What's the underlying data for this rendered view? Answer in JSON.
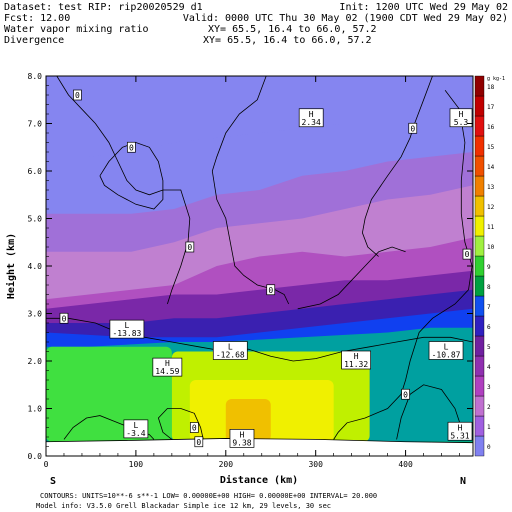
{
  "header": {
    "dataset_line": "Dataset: test   RIP: rip20020529 d1",
    "init_line": "Init: 1200 UTC Wed 29 May 02",
    "fcst_line": "Fcst:     12.00",
    "valid_line": "Valid: 0000 UTC Thu 30 May 02 (1900 CDT Wed 29 May 02)",
    "field1": "Water vapor mixing ratio",
    "xy1": "XY=  65.5, 16.4 to  66.0, 57.2",
    "field2": "Divergence",
    "xy2": "XY=  65.5, 16.4 to  66.0, 57.2"
  },
  "footer": {
    "line1": "CONTOURS:  UNITS=10**-6 s**-1   LOW= 0.00000E+00   HIGH= 0.00000E+00   INTERVAL=     20.000",
    "line2": "Model info: V3.5.0  Grell     Blackadar  Simple ice    12 km,  29 levels,    30 sec"
  },
  "chart_data": {
    "type": "heatmap",
    "title": "Water vapor mixing ratio",
    "xlabel": "Distance (km)",
    "ylabel": "Height (km)",
    "xlim": [
      0,
      475
    ],
    "ylim": [
      0,
      8
    ],
    "x_ticks": [
      0,
      100,
      200,
      300,
      400
    ],
    "y_ticks": [
      "0.0",
      "1.0",
      "2.0",
      "3.0",
      "4.0",
      "5.0",
      "6.0",
      "7.0",
      "8.0"
    ],
    "end_labels": {
      "left": "S",
      "right": "N"
    },
    "colorbar": {
      "unit": "g kg-1",
      "labels": [
        "0",
        "1",
        "2",
        "3",
        "4",
        "5",
        "6",
        "7",
        "8",
        "9",
        "10",
        "11",
        "12",
        "13",
        "14",
        "15",
        "16",
        "17",
        "18"
      ],
      "colors": [
        "#8080f0",
        "#a060e0",
        "#c070d0",
        "#b040c0",
        "#9030b0",
        "#7020a0",
        "#3020c0",
        "#1050f0",
        "#00a040",
        "#30d030",
        "#a0f040",
        "#f0f000",
        "#f0c000",
        "#f08000",
        "#f05000",
        "#f03000",
        "#e01010",
        "#c00000",
        "#900000"
      ]
    },
    "layers": [
      {
        "name": "lavender top",
        "value": "1",
        "color": "#8585f0",
        "bottom": [
          6.3,
          6.3,
          6.4,
          6.6,
          6.7,
          6.8,
          6.9,
          7.0,
          7.0,
          7.0,
          7.0
        ]
      },
      {
        "name": "light purple",
        "value": "2",
        "color": "#a070d8",
        "bottom": [
          5.1,
          5.1,
          5.1,
          5.2,
          5.5,
          5.6,
          5.9,
          6.0,
          6.2,
          6.3,
          6.4
        ]
      },
      {
        "name": "pinkish purple",
        "value": "3",
        "color": "#c080d0",
        "bottom": [
          4.3,
          4.3,
          4.3,
          4.5,
          4.8,
          4.9,
          5.0,
          5.2,
          5.4,
          5.5,
          5.7
        ]
      },
      {
        "name": "magenta purple",
        "value": "4",
        "color": "#b050c0",
        "bottom": [
          3.3,
          3.4,
          3.5,
          3.6,
          4.0,
          4.2,
          4.3,
          4.2,
          4.3,
          4.4,
          4.6
        ]
      },
      {
        "name": "deep purple",
        "value": "5",
        "color": "#7a28a8",
        "bottom": [
          3.1,
          3.2,
          3.3,
          3.4,
          3.4,
          3.5,
          3.6,
          3.7,
          3.7,
          3.8,
          3.9
        ]
      },
      {
        "name": "indigo",
        "value": "6",
        "color": "#3a20b0",
        "bottom": [
          2.8,
          2.8,
          2.8,
          2.9,
          2.9,
          3.0,
          3.1,
          3.2,
          3.3,
          3.4,
          3.5
        ]
      },
      {
        "name": "blue",
        "value": "7",
        "color": "#1040f0",
        "bottom": [
          2.6,
          2.55,
          2.5,
          2.5,
          2.5,
          2.6,
          2.7,
          2.8,
          2.9,
          3.0,
          3.1
        ]
      },
      {
        "name": "teal",
        "value": "8",
        "color": "#00a0a0",
        "bottom": [
          2.3,
          2.3,
          2.35,
          2.4,
          2.4,
          2.45,
          2.5,
          2.55,
          2.6,
          2.7,
          2.7
        ]
      },
      {
        "name": "green",
        "value": "9",
        "color": "#00c030",
        "bottom": [
          0.3,
          0.3,
          0.3,
          0.3,
          0.35,
          0.35,
          0.35,
          0.3,
          0.3,
          0.3,
          0.3
        ]
      }
    ],
    "patches": [
      {
        "name": "light green",
        "value": "10",
        "color": "#40e040",
        "x": [
          0,
          140
        ],
        "y": [
          0.3,
          2.3
        ]
      },
      {
        "name": "yellow green",
        "value": "11",
        "color": "#c0f000",
        "x": [
          140,
          360
        ],
        "y": [
          0.3,
          2.2
        ]
      },
      {
        "name": "yellow",
        "value": "12",
        "color": "#f0f000",
        "x": [
          160,
          320
        ],
        "y": [
          0.3,
          1.6
        ]
      },
      {
        "name": "orange yellow",
        "value": "13",
        "color": "#f0c000",
        "x": [
          200,
          250
        ],
        "y": [
          0.3,
          1.2
        ]
      }
    ],
    "extremes": [
      {
        "kind": "H",
        "value": "2.34",
        "x": 295,
        "y": 7.1
      },
      {
        "kind": "H",
        "value": "5.3",
        "x": 470,
        "y": 7.1
      },
      {
        "kind": "L",
        "value": "-13.83",
        "x": 90,
        "y": 2.65
      },
      {
        "kind": "L",
        "value": "-12.68",
        "x": 205,
        "y": 2.2
      },
      {
        "kind": "H",
        "value": "14.59",
        "x": 135,
        "y": 1.85
      },
      {
        "kind": "H",
        "value": "11.32",
        "x": 345,
        "y": 2.0
      },
      {
        "kind": "L",
        "value": "-10.87",
        "x": 445,
        "y": 2.2
      },
      {
        "kind": "L",
        "value": "-3.4",
        "x": 100,
        "y": 0.55
      },
      {
        "kind": "H",
        "value": "9.38",
        "x": 218,
        "y": 0.35
      },
      {
        "kind": "H",
        "value": "5.31",
        "x": 470,
        "y": 0.5
      }
    ],
    "contour_labels": [
      {
        "value": "0",
        "x": 35,
        "y": 7.6
      },
      {
        "value": "0",
        "x": 95,
        "y": 6.5
      },
      {
        "value": "0",
        "x": 160,
        "y": 4.4
      },
      {
        "value": "0",
        "x": 250,
        "y": 3.5
      },
      {
        "value": "0",
        "x": 408,
        "y": 6.9
      },
      {
        "value": "0",
        "x": 475,
        "y": 4.25
      },
      {
        "value": "0",
        "x": 20,
        "y": 2.9
      },
      {
        "value": "0",
        "x": 400,
        "y": 1.3
      },
      {
        "value": "0",
        "x": 170,
        "y": 0.3
      },
      {
        "value": "0",
        "x": 165,
        "y": 0.6
      }
    ],
    "contours": [
      [
        [
          12,
          8.0
        ],
        [
          25,
          7.6
        ],
        [
          40,
          7.3
        ],
        [
          55,
          7.0
        ],
        [
          70,
          6.6
        ],
        [
          80,
          6.2
        ],
        [
          90,
          5.8
        ],
        [
          100,
          5.6
        ],
        [
          115,
          5.5
        ],
        [
          130,
          5.6
        ],
        [
          150,
          5.6
        ],
        [
          160,
          5.0
        ],
        [
          158,
          4.5
        ],
        [
          150,
          4.0
        ],
        [
          140,
          3.5
        ],
        [
          135,
          3.2
        ]
      ],
      [
        [
          60,
          5.9
        ],
        [
          70,
          6.2
        ],
        [
          85,
          6.5
        ],
        [
          100,
          6.6
        ],
        [
          115,
          6.5
        ],
        [
          125,
          6.2
        ],
        [
          130,
          5.8
        ],
        [
          130,
          5.4
        ],
        [
          120,
          5.2
        ],
        [
          100,
          5.3
        ],
        [
          80,
          5.5
        ],
        [
          65,
          5.7
        ],
        [
          60,
          5.9
        ]
      ],
      [
        [
          245,
          8.0
        ],
        [
          235,
          7.5
        ],
        [
          215,
          7.2
        ],
        [
          200,
          6.8
        ],
        [
          190,
          6.3
        ],
        [
          185,
          6.0
        ],
        [
          190,
          5.4
        ],
        [
          200,
          5.0
        ],
        [
          205,
          4.5
        ],
        [
          210,
          4.0
        ],
        [
          220,
          3.8
        ],
        [
          235,
          3.6
        ],
        [
          255,
          3.5
        ],
        [
          265,
          3.4
        ],
        [
          270,
          3.2
        ]
      ],
      [
        [
          280,
          3.1
        ],
        [
          305,
          3.2
        ],
        [
          325,
          3.4
        ],
        [
          340,
          3.7
        ],
        [
          355,
          4.0
        ],
        [
          370,
          4.3
        ],
        [
          385,
          4.4
        ],
        [
          400,
          4.3
        ]
      ],
      [
        [
          430,
          8.0
        ],
        [
          420,
          7.5
        ],
        [
          410,
          7.0
        ],
        [
          405,
          6.7
        ],
        [
          395,
          6.3
        ],
        [
          380,
          5.9
        ],
        [
          362,
          5.4
        ],
        [
          355,
          5.0
        ],
        [
          352,
          4.7
        ],
        [
          358,
          4.4
        ],
        [
          370,
          4.2
        ]
      ],
      [
        [
          444,
          7.7
        ],
        [
          460,
          7.3
        ],
        [
          466,
          6.6
        ],
        [
          462,
          5.8
        ],
        [
          462,
          5.1
        ],
        [
          466,
          4.5
        ],
        [
          474,
          4.0
        ],
        [
          470,
          3.5
        ],
        [
          455,
          3.2
        ],
        [
          430,
          2.9
        ],
        [
          415,
          2.6
        ],
        [
          405,
          2.0
        ],
        [
          400,
          1.6
        ],
        [
          395,
          1.3
        ],
        [
          380,
          1.0
        ],
        [
          355,
          0.8
        ],
        [
          335,
          0.7
        ],
        [
          325,
          0.5
        ],
        [
          320,
          0.35
        ]
      ],
      [
        [
          0,
          2.9
        ],
        [
          25,
          2.9
        ],
        [
          55,
          2.8
        ],
        [
          80,
          2.6
        ],
        [
          110,
          2.5
        ],
        [
          140,
          2.4
        ],
        [
          170,
          2.3
        ],
        [
          200,
          2.2
        ],
        [
          225,
          2.25
        ],
        [
          250,
          2.1
        ],
        [
          275,
          2.0
        ],
        [
          300,
          2.05
        ],
        [
          330,
          2.2
        ],
        [
          360,
          2.3
        ],
        [
          390,
          2.4
        ],
        [
          420,
          2.5
        ],
        [
          450,
          2.5
        ],
        [
          475,
          2.4
        ]
      ],
      [
        [
          140,
          0.35
        ],
        [
          130,
          0.5
        ],
        [
          125,
          0.8
        ],
        [
          135,
          1.0
        ],
        [
          150,
          1.0
        ],
        [
          165,
          0.9
        ],
        [
          172,
          0.6
        ],
        [
          175,
          0.35
        ]
      ],
      [
        [
          20,
          0.35
        ],
        [
          30,
          0.6
        ],
        [
          45,
          0.8
        ],
        [
          60,
          0.85
        ],
        [
          80,
          0.7
        ],
        [
          100,
          0.55
        ],
        [
          115,
          0.45
        ],
        [
          120,
          0.35
        ]
      ],
      [
        [
          390,
          0.35
        ],
        [
          395,
          0.8
        ],
        [
          405,
          1.3
        ],
        [
          420,
          1.5
        ],
        [
          440,
          1.4
        ],
        [
          455,
          1.0
        ],
        [
          462,
          0.6
        ],
        [
          462,
          0.35
        ]
      ]
    ]
  }
}
